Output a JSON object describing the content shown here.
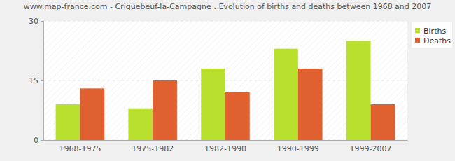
{
  "chart_data": {
    "type": "bar",
    "title": "www.map-france.com - Criquebeuf-la-Campagne : Evolution of births and deaths between 1968 and 2007",
    "categories": [
      "1968-1975",
      "1975-1982",
      "1982-1990",
      "1990-1999",
      "1999-2007"
    ],
    "series": [
      {
        "name": "Births",
        "color": "#b8e02c",
        "values": [
          9,
          8,
          18,
          23,
          25
        ]
      },
      {
        "name": "Deaths",
        "color": "#e0612f",
        "values": [
          13,
          15,
          12,
          18,
          9
        ]
      }
    ],
    "ylim": [
      0,
      30
    ],
    "yticks": [
      0,
      15,
      30
    ],
    "grid": true,
    "legend": "right"
  }
}
